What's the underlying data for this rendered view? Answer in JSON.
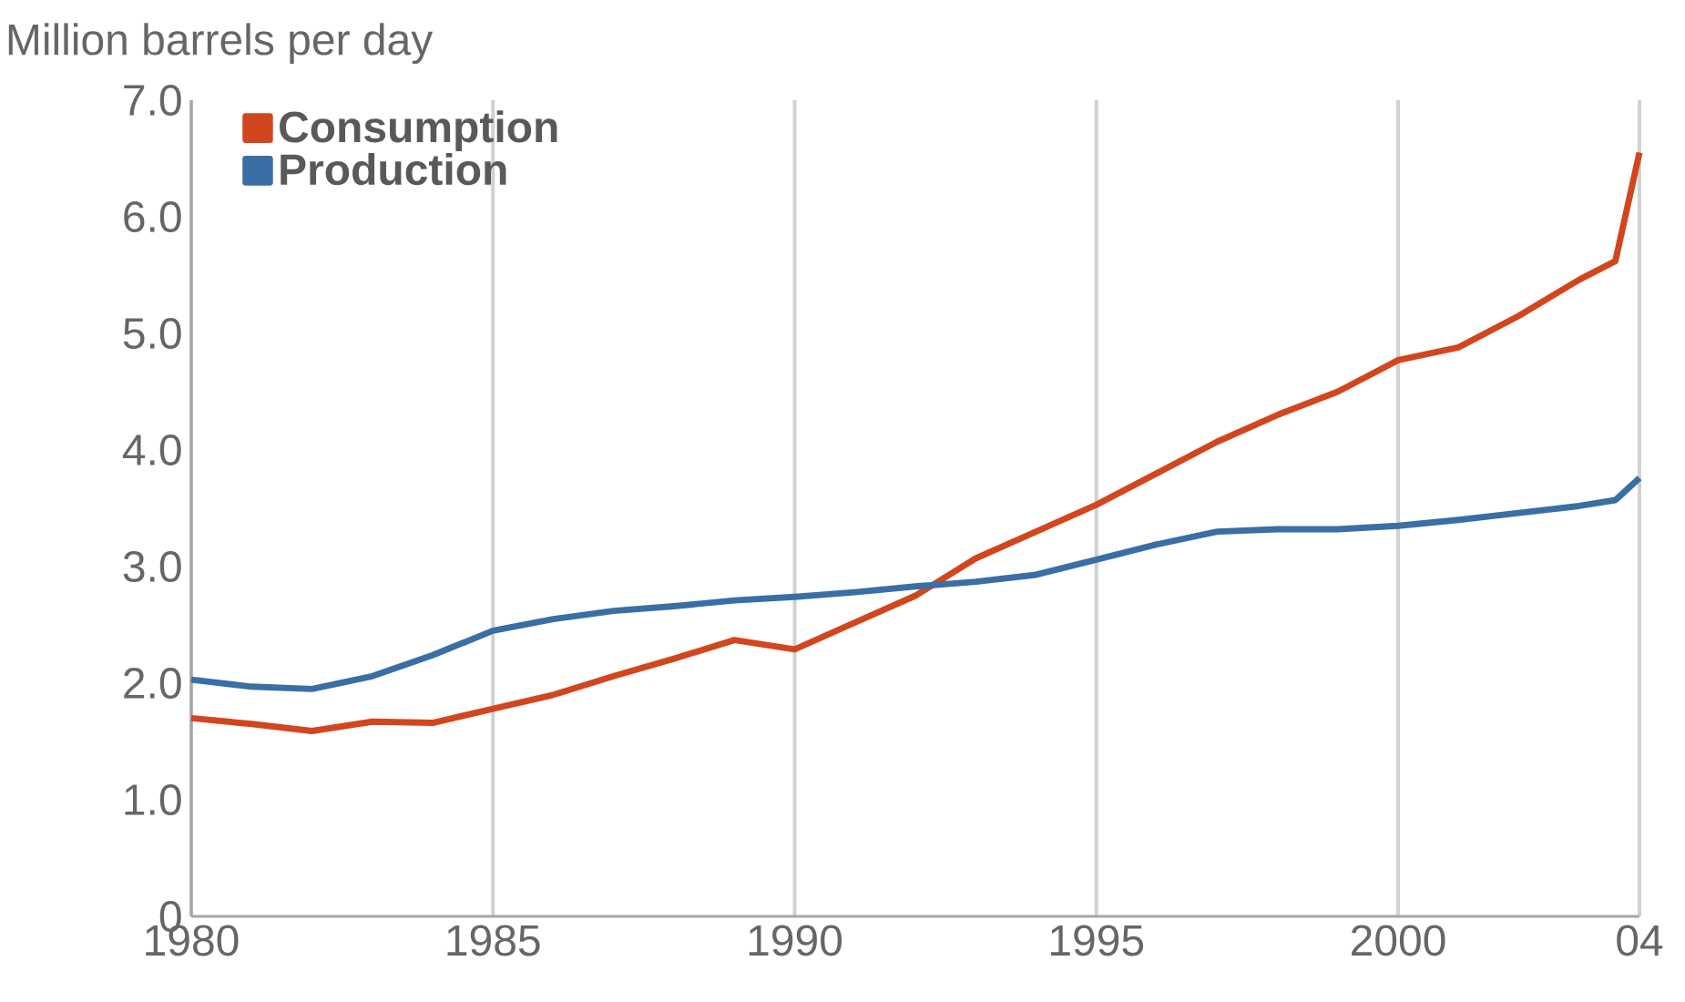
{
  "chart_data": {
    "type": "line",
    "ylabel": "Million barrels per day",
    "x": [
      1980,
      1981,
      1982,
      1983,
      1984,
      1985,
      1986,
      1987,
      1988,
      1989,
      1990,
      1991,
      1992,
      1993,
      1994,
      1995,
      1996,
      1997,
      1998,
      1999,
      2000,
      2001,
      2002,
      2003,
      2003.6,
      2004
    ],
    "series": [
      {
        "name": "Consumption",
        "color": "#d2461e",
        "values": [
          1.7,
          1.65,
          1.59,
          1.67,
          1.66,
          1.78,
          1.9,
          2.06,
          2.21,
          2.37,
          2.29,
          2.52,
          2.75,
          3.07,
          3.3,
          3.53,
          3.8,
          4.07,
          4.3,
          4.5,
          4.77,
          4.88,
          5.15,
          5.46,
          5.62,
          6.55
        ]
      },
      {
        "name": "Production",
        "color": "#3a6ea5",
        "values": [
          2.03,
          1.97,
          1.95,
          2.06,
          2.24,
          2.45,
          2.55,
          2.62,
          2.66,
          2.71,
          2.74,
          2.78,
          2.83,
          2.87,
          2.93,
          3.06,
          3.19,
          3.3,
          3.32,
          3.32,
          3.35,
          3.4,
          3.46,
          3.52,
          3.57,
          3.76
        ]
      }
    ],
    "xlim": [
      1980,
      2004
    ],
    "ylim": [
      0,
      7
    ],
    "xticks": [
      1980,
      1985,
      1990,
      1995,
      2000,
      {
        "value": 2004,
        "label": "04"
      }
    ],
    "yticks": [
      {
        "value": 0,
        "label": "0"
      },
      {
        "value": 1,
        "label": "1.0"
      },
      {
        "value": 2,
        "label": "2.0"
      },
      {
        "value": 3,
        "label": "3.0"
      },
      {
        "value": 4,
        "label": "4.0"
      },
      {
        "value": 5,
        "label": "5.0"
      },
      {
        "value": 6,
        "label": "6.0"
      },
      {
        "value": 7,
        "label": "7.0"
      }
    ],
    "grid": "x",
    "legend": "top left"
  }
}
